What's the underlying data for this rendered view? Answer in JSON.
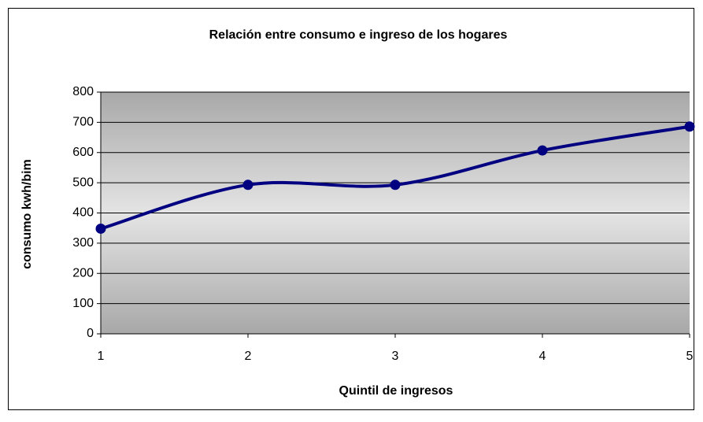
{
  "chart_data": {
    "type": "line",
    "title": "Relación entre consumo e ingreso de los hogares",
    "x_label": "Quintil de ingresos",
    "y_label": "consumo kwh/bim",
    "x": [
      1,
      2,
      3,
      4,
      5
    ],
    "series": [
      {
        "color": "#000080",
        "values": [
          348,
          493,
          493,
          607,
          686
        ]
      }
    ],
    "xlim": [
      1,
      5
    ],
    "xticks": [
      1,
      2,
      3,
      4,
      5
    ],
    "ylim": [
      0,
      800
    ],
    "yticks": [
      0,
      100,
      200,
      300,
      400,
      500,
      600,
      700,
      800
    ],
    "grid": true,
    "smooth": true,
    "markers": true
  }
}
